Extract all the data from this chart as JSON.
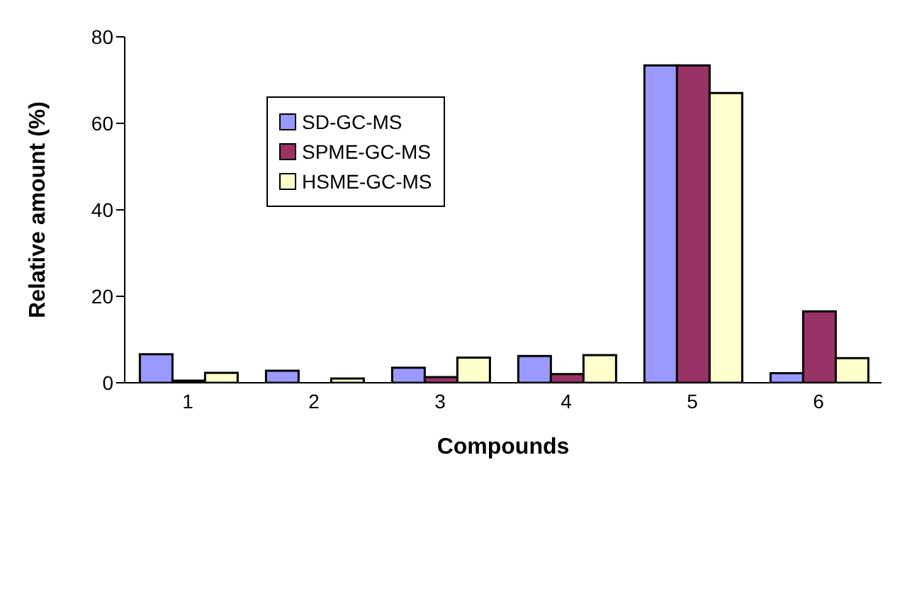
{
  "chart_data": {
    "type": "bar",
    "xlabel": "Compounds",
    "ylabel": "Relative amount (%)",
    "categories": [
      "1",
      "2",
      "3",
      "4",
      "5",
      "6"
    ],
    "series": [
      {
        "name": "SD-GC-MS",
        "color": "#9999ff",
        "values": [
          6.6,
          2.8,
          3.5,
          6.2,
          73.4,
          2.2
        ]
      },
      {
        "name": "SPME-GC-MS",
        "color": "#993366",
        "values": [
          0.5,
          0,
          1.3,
          2.0,
          73.4,
          16.5
        ]
      },
      {
        "name": "HSME-GC-MS",
        "color": "#ffffcc",
        "values": [
          2.3,
          1.0,
          5.8,
          6.4,
          67,
          5.7
        ]
      }
    ],
    "ylim": [
      0,
      80
    ],
    "yticks": [
      0,
      20,
      40,
      60,
      80
    ],
    "grid": false,
    "legend": "top left"
  }
}
